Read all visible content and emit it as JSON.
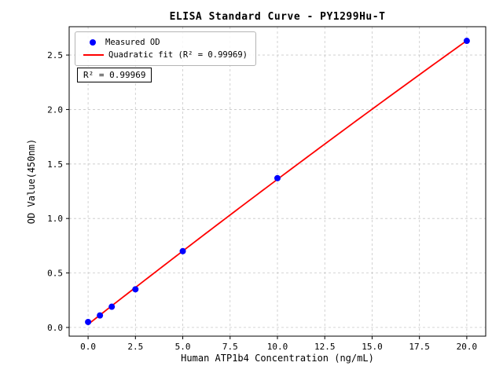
{
  "chart_data": {
    "type": "scatter",
    "title": "ELISA Standard Curve - PY1299Hu-T",
    "xlabel": "Human ATP1b4 Concentration (ng/mL)",
    "ylabel": "OD Value(450nm)",
    "x": [
      0,
      0.625,
      1.25,
      2.5,
      5.0,
      10.0,
      20.0
    ],
    "y": [
      0.05,
      0.11,
      0.19,
      0.35,
      0.7,
      1.37,
      2.63
    ],
    "series": [
      {
        "name": "Measured OD",
        "type": "scatter",
        "color": "#0000ff"
      },
      {
        "name": "Quadratic fit (R² = 0.99969)",
        "type": "line",
        "color": "#ff0000"
      }
    ],
    "x_ticks": [
      0,
      2.5,
      5,
      7.5,
      10,
      12.5,
      15,
      17.5,
      20
    ],
    "x_tick_labels": [
      "0.0",
      "2.5",
      "5.0",
      "7.5",
      "10.0",
      "12.5",
      "15.0",
      "17.5",
      "20.0"
    ],
    "y_ticks": [
      0,
      0.5,
      1.0,
      1.5,
      2.0,
      2.5
    ],
    "y_tick_labels": [
      "0.0",
      "0.5",
      "1.0",
      "1.5",
      "2.0",
      "2.5"
    ],
    "xlim": [
      -1,
      21
    ],
    "ylim": [
      -0.08,
      2.76
    ],
    "grid": true,
    "legend_position": "upper left",
    "annotation": "R² = 0.99969",
    "r_squared": 0.99969,
    "colors": {
      "points": "#0000ff",
      "fit_line": "#ff0000",
      "grid": "#c8c8c8",
      "axis": "#000000"
    }
  }
}
